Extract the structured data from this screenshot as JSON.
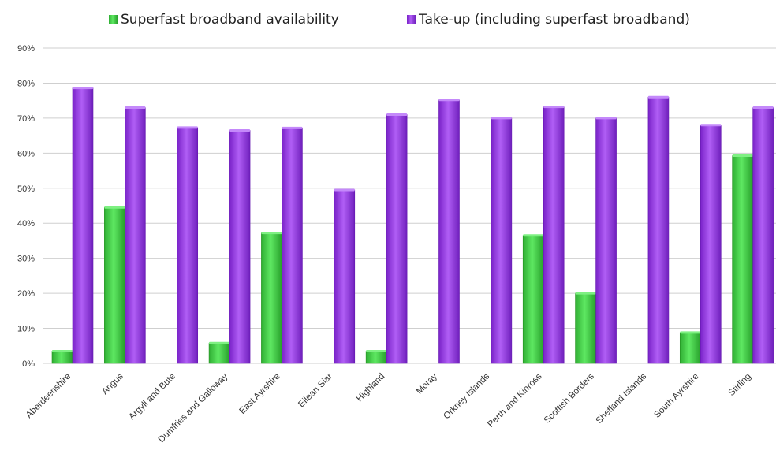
{
  "chart_data": {
    "type": "bar",
    "categories": [
      "Aberdeenshire",
      "Angus",
      "Argyll and Bute",
      "Dumfries and Galloway",
      "East Ayrshire",
      "Eilean Siar",
      "Highland",
      "Moray",
      "Orkney Islands",
      "Perth and Kinross",
      "Scottish Borders",
      "Shetland Islands",
      "South Ayrshire",
      "Stirling"
    ],
    "series": [
      {
        "name": "Superfast broadband availability",
        "values": [
          0.035,
          0.445,
          0,
          0.058,
          0.372,
          0,
          0.035,
          0,
          0,
          0.365,
          0.2,
          0,
          0.088,
          0.593
        ]
      },
      {
        "name": "Take-up (including superfast broadband)",
        "values": [
          0.786,
          0.73,
          0.673,
          0.665,
          0.672,
          0.495,
          0.71,
          0.752,
          0.7,
          0.732,
          0.7,
          0.76,
          0.68,
          0.73
        ]
      }
    ],
    "ylim": [
      0,
      0.9
    ],
    "yticks": [
      0,
      0.1,
      0.2,
      0.3,
      0.4,
      0.5,
      0.6,
      0.7,
      0.8,
      0.9
    ],
    "ytick_labels": [
      "0%",
      "10%",
      "20%",
      "30%",
      "40%",
      "50%",
      "60%",
      "70%",
      "80%",
      "90%"
    ],
    "grid": true,
    "legend": "top-center",
    "title": "",
    "xlabel": "",
    "ylabel": "",
    "colors": {
      "availability": "#3fd043",
      "takeup": "#9a3ee8",
      "grid": "#cfcfcf"
    }
  }
}
